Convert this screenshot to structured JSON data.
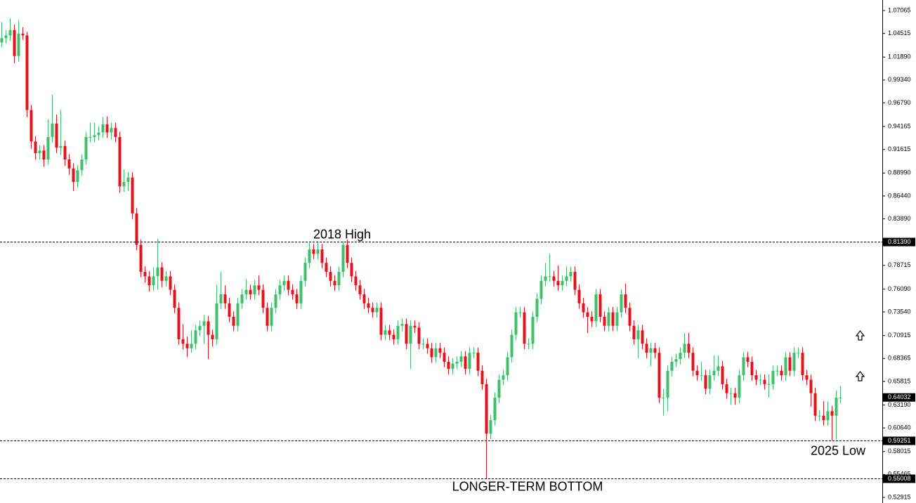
{
  "chart_data": {
    "type": "candlestick",
    "up_color": "#3dbf6b",
    "down_color": "#e8101a",
    "ylim": [
      0.52915,
      1.07065
    ],
    "yticks": [
      1.07065,
      1.04515,
      {
        "value": 1.0189,
        "label": "1.01890"
      },
      {
        "value": 0.9934,
        "label": "0.99340"
      },
      {
        "value": 0.9679,
        "label": "0.96790"
      },
      0.94165,
      0.91615,
      {
        "value": 0.8899,
        "label": "0.88990"
      },
      {
        "value": 0.8644,
        "label": "0.86440"
      },
      {
        "value": 0.8389,
        "label": "0.83890"
      },
      0.78715,
      {
        "value": 0.7609,
        "label": "0.76090"
      },
      {
        "value": 0.7354,
        "label": "0.73540"
      },
      0.70915,
      0.68365,
      0.65815,
      {
        "value": 0.6319,
        "label": "0.63190"
      },
      {
        "value": 0.6064,
        "label": "0.60640"
      },
      0.58015,
      0.55465,
      0.52915
    ],
    "levels": [
      {
        "value": 0.8139,
        "label": "0.81390",
        "text": "2018 High"
      },
      {
        "value": 0.59251,
        "label": "0.59251",
        "text": "2025 Low"
      },
      {
        "value": 0.55008,
        "label": "0.55008",
        "text": "LONGER-TERM BOTTOM"
      }
    ],
    "current_price": {
      "value": 0.64032,
      "label": "0.64032"
    },
    "open": [
      1.035,
      1.04,
      1.043,
      1.049,
      1.02,
      1.045,
      1.043,
      0.96,
      0.925,
      0.912,
      0.915,
      0.905,
      0.93,
      0.945,
      0.918,
      0.92,
      0.905,
      0.895,
      0.88,
      0.893,
      0.905,
      0.93,
      0.93,
      0.932,
      0.935,
      0.944,
      0.935,
      0.94,
      0.93,
      0.875,
      0.88,
      0.885,
      0.845,
      0.81,
      0.78,
      0.775,
      0.765,
      0.775,
      0.785,
      0.77,
      0.775,
      0.76,
      0.74,
      0.705,
      0.7,
      0.695,
      0.7,
      0.715,
      0.72,
      0.725,
      0.71,
      0.705,
      0.745,
      0.755,
      0.745,
      0.73,
      0.72,
      0.745,
      0.755,
      0.76,
      0.755,
      0.765,
      0.76,
      0.74,
      0.72,
      0.74,
      0.755,
      0.765,
      0.77,
      0.76,
      0.755,
      0.745,
      0.77,
      0.79,
      0.805,
      0.8,
      0.805,
      0.79,
      0.78,
      0.77,
      0.765,
      0.78,
      0.81,
      0.79,
      0.775,
      0.765,
      0.755,
      0.745,
      0.74,
      0.735,
      0.74,
      0.71,
      0.715,
      0.71,
      0.705,
      0.72,
      0.722,
      0.7,
      0.72,
      0.718,
      0.7,
      0.7,
      0.695,
      0.685,
      0.695,
      0.69,
      0.68,
      0.672,
      0.678,
      0.68,
      0.686,
      0.672,
      0.69,
      0.69,
      0.67,
      0.655,
      0.6,
      0.615,
      0.64,
      0.66,
      0.665,
      0.685,
      0.71,
      0.735,
      0.735,
      0.7,
      0.7,
      0.73,
      0.75,
      0.77,
      0.775,
      0.775,
      0.77,
      0.765,
      0.77,
      0.775,
      0.78,
      0.76,
      0.745,
      0.735,
      0.73,
      0.725,
      0.755,
      0.73,
      0.72,
      0.735,
      0.72,
      0.735,
      0.755,
      0.74,
      0.72,
      0.705,
      0.715,
      0.7,
      0.69,
      0.695,
      0.69,
      0.64,
      0.64,
      0.67,
      0.68,
      0.683,
      0.69,
      0.7,
      0.69,
      0.67,
      0.665,
      0.665,
      0.65,
      0.665,
      0.67,
      0.675,
      0.655,
      0.645,
      0.645,
      0.64,
      0.665,
      0.685,
      0.68,
      0.665,
      0.66,
      0.66,
      0.655,
      0.655,
      0.67,
      0.67,
      0.665,
      0.685,
      0.67,
      0.69,
      0.69,
      0.665,
      0.66,
      0.645,
      0.62,
      0.62,
      0.615,
      0.625,
      0.62,
      0.64
    ],
    "high": [
      1.058,
      1.049,
      1.062,
      1.055,
      1.06,
      1.052,
      1.047,
      0.966,
      0.931,
      0.921,
      0.921,
      0.95,
      0.977,
      0.955,
      0.96,
      0.926,
      0.911,
      0.901,
      0.899,
      0.911,
      0.936,
      0.946,
      0.946,
      0.942,
      0.952,
      0.953,
      0.946,
      0.946,
      0.936,
      0.894,
      0.891,
      0.891,
      0.851,
      0.816,
      0.786,
      0.781,
      0.785,
      0.817,
      0.791,
      0.781,
      0.781,
      0.766,
      0.746,
      0.722,
      0.708,
      0.715,
      0.721,
      0.726,
      0.732,
      0.731,
      0.716,
      0.765,
      0.78,
      0.765,
      0.751,
      0.736,
      0.751,
      0.761,
      0.772,
      0.766,
      0.771,
      0.776,
      0.766,
      0.746,
      0.746,
      0.761,
      0.771,
      0.776,
      0.776,
      0.766,
      0.761,
      0.776,
      0.796,
      0.812,
      0.811,
      0.814,
      0.811,
      0.796,
      0.786,
      0.776,
      0.786,
      0.814,
      0.816,
      0.796,
      0.781,
      0.771,
      0.761,
      0.751,
      0.746,
      0.746,
      0.746,
      0.721,
      0.721,
      0.716,
      0.726,
      0.728,
      0.728,
      0.726,
      0.726,
      0.724,
      0.706,
      0.706,
      0.701,
      0.701,
      0.701,
      0.696,
      0.686,
      0.684,
      0.686,
      0.692,
      0.692,
      0.696,
      0.696,
      0.696,
      0.676,
      0.661,
      0.621,
      0.646,
      0.666,
      0.671,
      0.691,
      0.716,
      0.741,
      0.741,
      0.741,
      0.706,
      0.736,
      0.756,
      0.776,
      0.79,
      0.8,
      0.781,
      0.787,
      0.776,
      0.786,
      0.786,
      0.786,
      0.766,
      0.751,
      0.741,
      0.736,
      0.761,
      0.761,
      0.736,
      0.741,
      0.741,
      0.741,
      0.761,
      0.767,
      0.746,
      0.726,
      0.721,
      0.721,
      0.706,
      0.701,
      0.701,
      0.696,
      0.65,
      0.676,
      0.686,
      0.689,
      0.696,
      0.712,
      0.712,
      0.696,
      0.676,
      0.68,
      0.671,
      0.671,
      0.687,
      0.687,
      0.681,
      0.661,
      0.651,
      0.651,
      0.671,
      0.691,
      0.691,
      0.686,
      0.671,
      0.666,
      0.666,
      0.666,
      0.676,
      0.676,
      0.676,
      0.691,
      0.691,
      0.696,
      0.696,
      0.696,
      0.671,
      0.666,
      0.651,
      0.626,
      0.636,
      0.636,
      0.631,
      0.648,
      0.653
    ],
    "low": [
      1.03,
      1.034,
      1.037,
      1.012,
      1.014,
      1.038,
      0.952,
      0.917,
      0.905,
      0.905,
      0.897,
      0.899,
      0.924,
      0.912,
      0.91,
      0.898,
      0.888,
      0.87,
      0.874,
      0.887,
      0.899,
      0.924,
      0.924,
      0.926,
      0.929,
      0.929,
      0.927,
      0.924,
      0.868,
      0.869,
      0.87,
      0.839,
      0.804,
      0.774,
      0.768,
      0.758,
      0.759,
      0.76,
      0.763,
      0.764,
      0.754,
      0.734,
      0.699,
      0.694,
      0.685,
      0.69,
      0.694,
      0.709,
      0.7,
      0.683,
      0.697,
      0.699,
      0.739,
      0.739,
      0.724,
      0.714,
      0.714,
      0.739,
      0.749,
      0.749,
      0.749,
      0.754,
      0.734,
      0.714,
      0.714,
      0.734,
      0.749,
      0.759,
      0.754,
      0.749,
      0.739,
      0.739,
      0.764,
      0.784,
      0.794,
      0.794,
      0.784,
      0.774,
      0.764,
      0.759,
      0.759,
      0.774,
      0.784,
      0.769,
      0.759,
      0.749,
      0.739,
      0.734,
      0.729,
      0.729,
      0.704,
      0.704,
      0.704,
      0.699,
      0.699,
      0.714,
      0.694,
      0.672,
      0.712,
      0.694,
      0.694,
      0.689,
      0.679,
      0.679,
      0.684,
      0.674,
      0.666,
      0.666,
      0.672,
      0.674,
      0.666,
      0.666,
      0.684,
      0.664,
      0.649,
      0.55,
      0.594,
      0.609,
      0.634,
      0.654,
      0.659,
      0.679,
      0.704,
      0.729,
      0.694,
      0.694,
      0.694,
      0.724,
      0.744,
      0.764,
      0.769,
      0.764,
      0.759,
      0.759,
      0.764,
      0.769,
      0.754,
      0.739,
      0.729,
      0.712,
      0.719,
      0.719,
      0.724,
      0.714,
      0.714,
      0.714,
      0.714,
      0.729,
      0.734,
      0.714,
      0.699,
      0.684,
      0.694,
      0.684,
      0.675,
      0.684,
      0.634,
      0.62,
      0.625,
      0.664,
      0.674,
      0.677,
      0.684,
      0.684,
      0.664,
      0.659,
      0.659,
      0.644,
      0.644,
      0.659,
      0.664,
      0.649,
      0.639,
      0.632,
      0.632,
      0.634,
      0.659,
      0.674,
      0.659,
      0.654,
      0.654,
      0.649,
      0.64,
      0.649,
      0.664,
      0.659,
      0.659,
      0.664,
      0.664,
      0.684,
      0.659,
      0.654,
      0.63,
      0.614,
      0.614,
      0.609,
      0.609,
      0.5925,
      0.593,
      0.634
    ],
    "close": [
      1.04,
      1.043,
      1.049,
      1.02,
      1.045,
      1.043,
      0.96,
      0.925,
      0.912,
      0.915,
      0.905,
      0.93,
      0.945,
      0.918,
      0.92,
      0.905,
      0.895,
      0.88,
      0.893,
      0.905,
      0.93,
      0.93,
      0.932,
      0.935,
      0.944,
      0.935,
      0.94,
      0.93,
      0.875,
      0.88,
      0.885,
      0.845,
      0.81,
      0.78,
      0.775,
      0.765,
      0.775,
      0.785,
      0.77,
      0.775,
      0.76,
      0.74,
      0.705,
      0.7,
      0.695,
      0.7,
      0.715,
      0.72,
      0.725,
      0.71,
      0.705,
      0.745,
      0.755,
      0.745,
      0.73,
      0.72,
      0.745,
      0.755,
      0.76,
      0.755,
      0.765,
      0.76,
      0.74,
      0.72,
      0.74,
      0.755,
      0.765,
      0.77,
      0.76,
      0.755,
      0.745,
      0.77,
      0.79,
      0.805,
      0.8,
      0.805,
      0.79,
      0.78,
      0.77,
      0.765,
      0.78,
      0.81,
      0.79,
      0.775,
      0.765,
      0.755,
      0.745,
      0.74,
      0.735,
      0.74,
      0.71,
      0.715,
      0.71,
      0.705,
      0.72,
      0.722,
      0.7,
      0.72,
      0.718,
      0.7,
      0.7,
      0.695,
      0.685,
      0.695,
      0.69,
      0.68,
      0.672,
      0.678,
      0.68,
      0.686,
      0.672,
      0.69,
      0.69,
      0.67,
      0.655,
      0.6,
      0.615,
      0.64,
      0.66,
      0.665,
      0.685,
      0.71,
      0.735,
      0.735,
      0.7,
      0.7,
      0.73,
      0.75,
      0.77,
      0.775,
      0.775,
      0.77,
      0.765,
      0.77,
      0.775,
      0.78,
      0.76,
      0.745,
      0.735,
      0.73,
      0.725,
      0.755,
      0.73,
      0.72,
      0.735,
      0.72,
      0.735,
      0.755,
      0.74,
      0.72,
      0.705,
      0.715,
      0.7,
      0.69,
      0.695,
      0.69,
      0.64,
      0.64,
      0.67,
      0.68,
      0.683,
      0.69,
      0.7,
      0.69,
      0.67,
      0.665,
      0.665,
      0.65,
      0.665,
      0.67,
      0.675,
      0.655,
      0.645,
      0.645,
      0.64,
      0.665,
      0.685,
      0.68,
      0.665,
      0.66,
      0.66,
      0.655,
      0.655,
      0.67,
      0.67,
      0.665,
      0.685,
      0.67,
      0.69,
      0.69,
      0.665,
      0.66,
      0.645,
      0.62,
      0.62,
      0.615,
      0.625,
      0.62,
      0.64,
      0.64
    ]
  }
}
